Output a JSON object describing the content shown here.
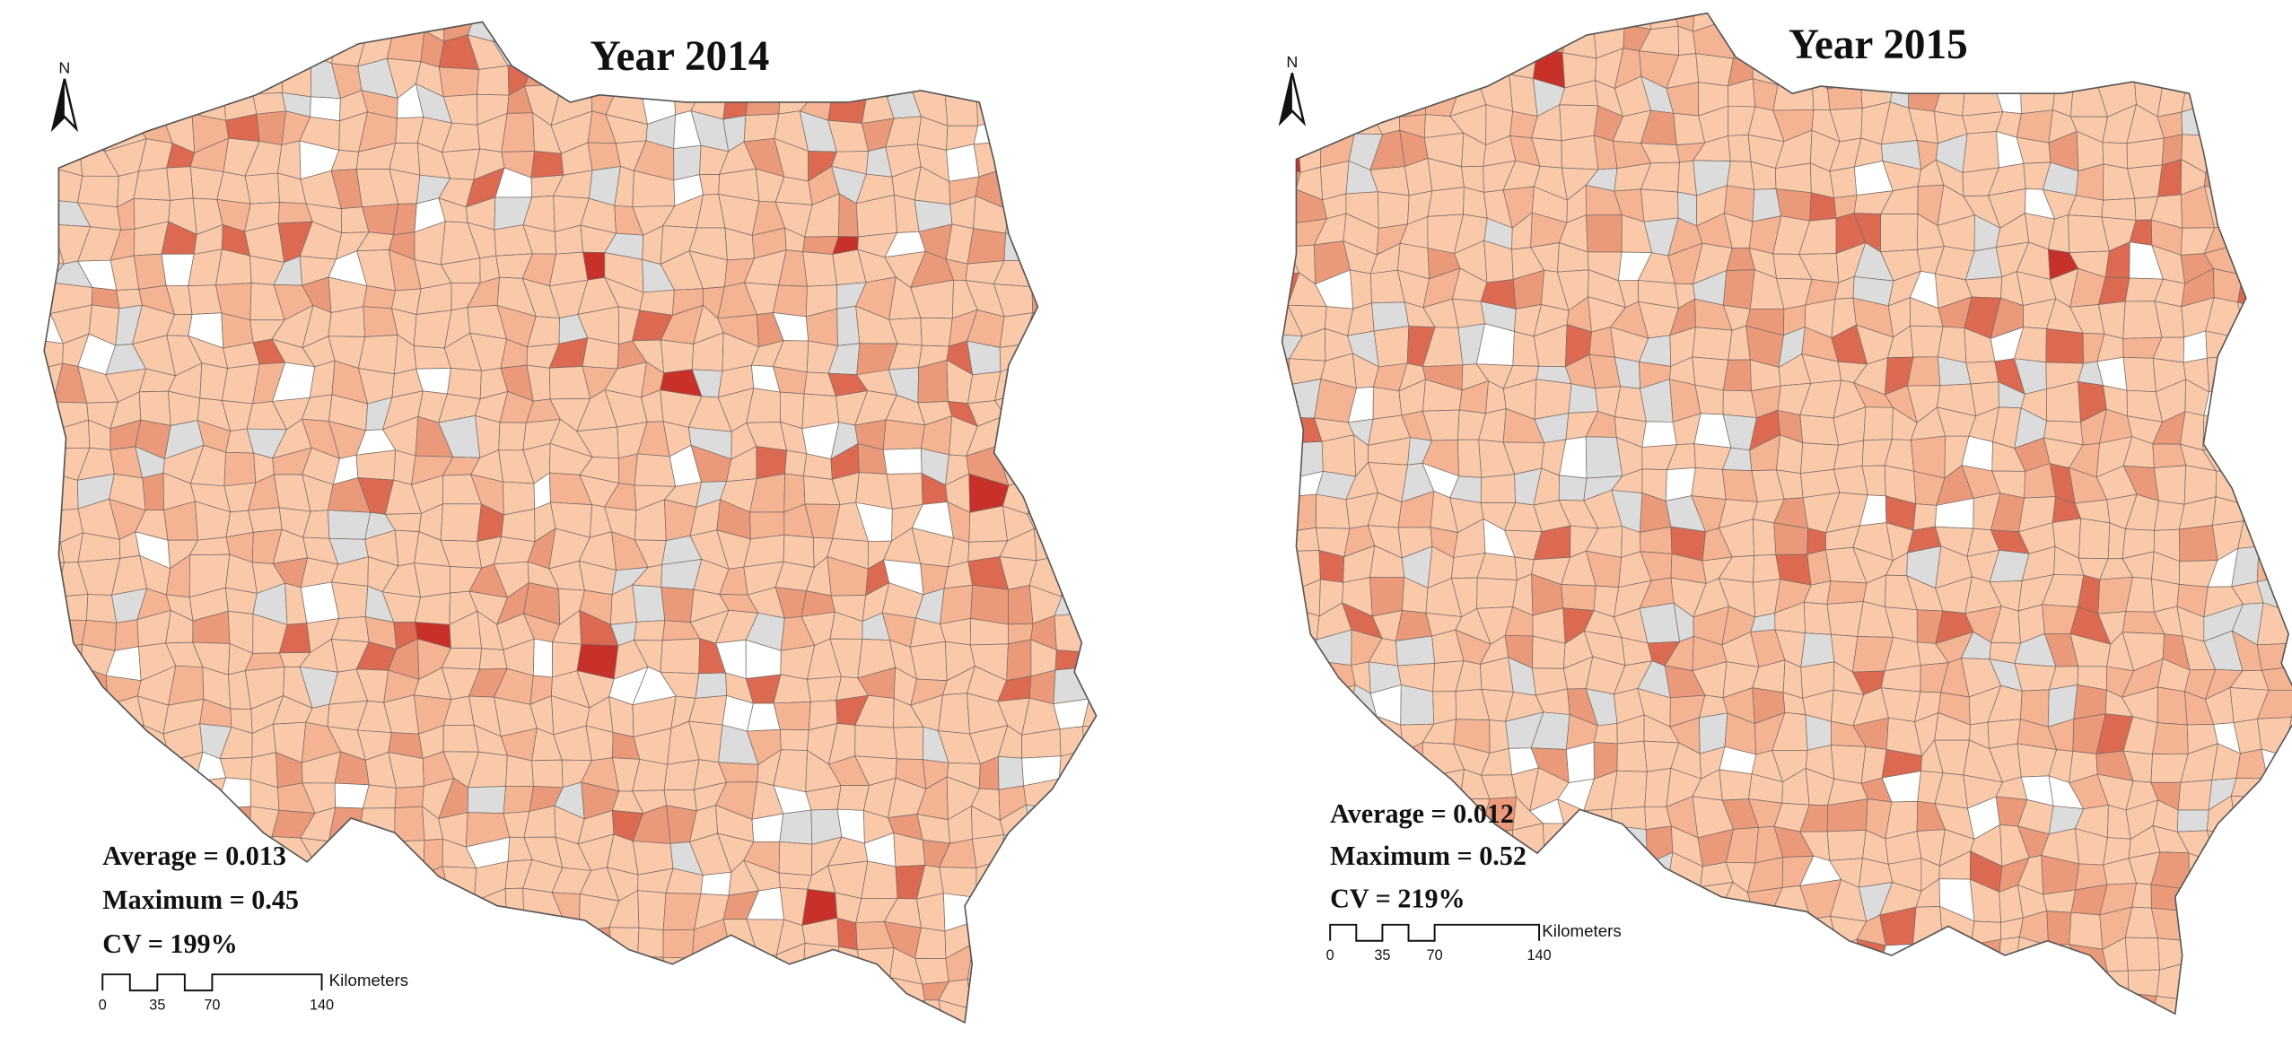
{
  "maps": [
    {
      "title": "Year 2014",
      "north": "N",
      "stats": [
        "Average = 0.013",
        "Maximum = 0.45",
        "CV = 199%"
      ],
      "scale": {
        "unit": "Kilometers",
        "ticks": [
          "0",
          "35",
          "70",
          "140"
        ]
      }
    },
    {
      "title": "Year 2015",
      "north": "N",
      "stats": [
        "Average = 0.012",
        "Maximum = 0.52",
        "CV = 219%"
      ],
      "scale": {
        "unit": "Kilometers",
        "ticks": [
          "0",
          "35",
          "70",
          "140"
        ]
      }
    }
  ]
}
